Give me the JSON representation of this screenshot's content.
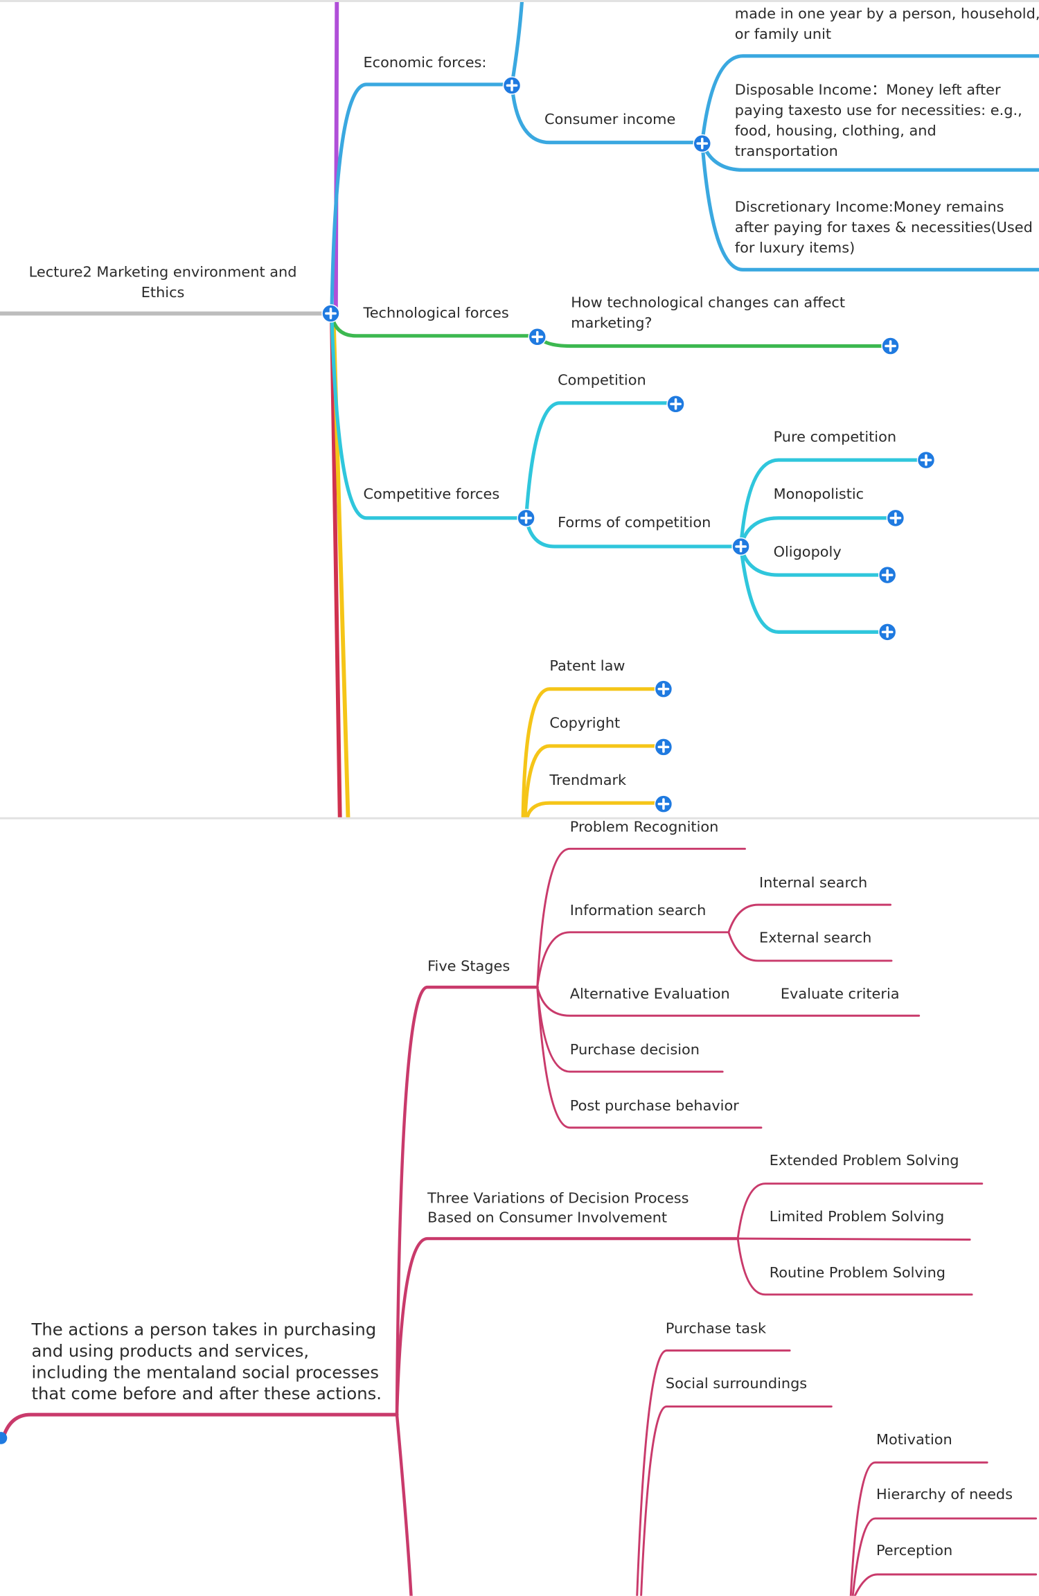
{
  "top_map": {
    "root": "Lecture2 Marketing environment and Ethics",
    "economic": {
      "label": "Economic forces:",
      "consumer_income": "Consumer income",
      "gross_income_tail": "made in one year by a person, household, or family unit",
      "disposable": "Disposable Income：Money left after paying taxesto use for necessities: e.g., food, housing, clothing, and transportation",
      "discretionary": "Discretionary Income:Money remains after paying for taxes & necessities(Used for luxury items)"
    },
    "technological": {
      "label": "Technological forces",
      "question": "How technological changes can affect marketing?"
    },
    "competitive": {
      "label": "Competitive forces",
      "competition": "Competition",
      "forms": "Forms of competition",
      "forms_items": [
        "Pure competition",
        "Monopolistic",
        "Oligopoly",
        ""
      ]
    },
    "regulatory_items": [
      "Patent law",
      "Copyright",
      "Trendmark"
    ],
    "colors": {
      "economic": "#3aa8e0",
      "technological": "#3cb850",
      "competitive": "#2fc6dc",
      "regulatory": "#f5c518",
      "root_line": "#bdbdbd",
      "node": "#1f7ae0"
    }
  },
  "bottom_map": {
    "definition": "The actions a person takes in purchasing and using products and services, including the mentaland social processes that come before and after these actions.",
    "five_stages": {
      "label": "Five Stages",
      "items": [
        "Problem Recognition",
        "Information search",
        "Alternative Evaluation",
        "Purchase decision",
        "Post purchase behavior"
      ],
      "information_search_children": [
        "Internal search",
        "External search"
      ],
      "alternative_evaluation_child": "Evaluate criteria"
    },
    "variations": {
      "label_line1": "Three Variations of Decision Process",
      "label_line2": "Based on Consumer Involvement",
      "items": [
        "Extended Problem Solving",
        "Limited Problem Solving",
        "Routine Problem Solving"
      ]
    },
    "situational": [
      "Purchase task",
      "Social surroundings"
    ],
    "psychological": [
      "Motivation",
      "Hierarchy of needs",
      "Perception"
    ],
    "colors": {
      "branch": "#c93a6b"
    }
  }
}
